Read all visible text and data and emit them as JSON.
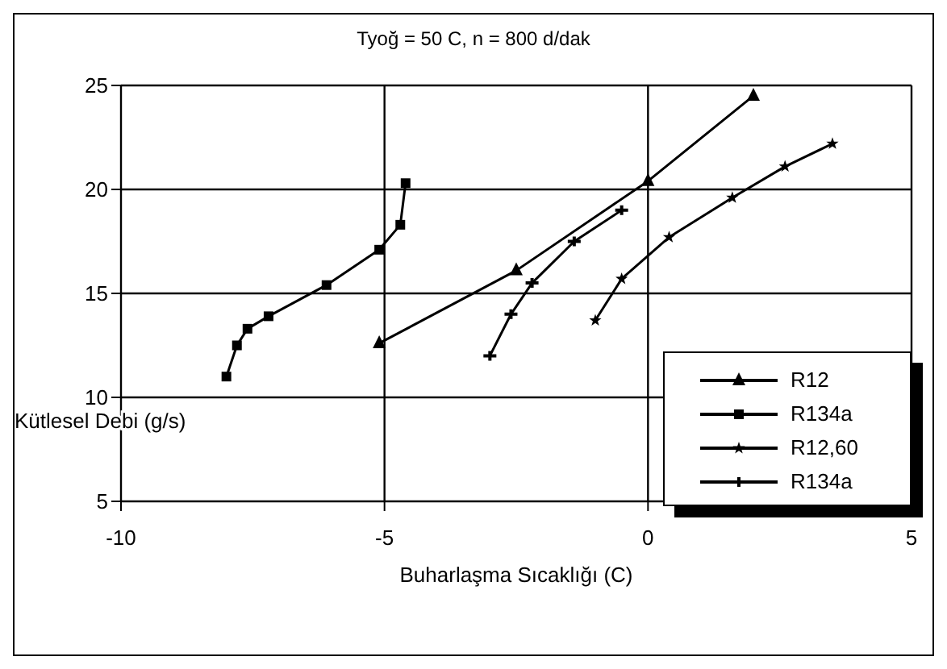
{
  "chart_data": {
    "type": "line",
    "title": "Tyoğ = 50 C, n = 800 d/dak",
    "xlabel": "Buharlaşma Sıcaklığı (C)",
    "ylabel": "Kütlesel Debi (g/s)",
    "xlim": [
      -10,
      5
    ],
    "xticks": [
      -10,
      -5,
      0,
      5
    ],
    "ylim": [
      5,
      25
    ],
    "yticks": [
      5,
      10,
      15,
      20,
      25
    ],
    "grid": true,
    "legend": "bottom right",
    "line_style": "solid",
    "series": [
      {
        "name": "R12",
        "color": "#000000",
        "marker": "triangle",
        "x": [
          -5.1,
          -2.5,
          0,
          2
        ],
        "values": [
          12.6,
          16.1,
          20.4,
          24.5
        ]
      },
      {
        "name": "R134a",
        "color": "#000000",
        "marker": "square",
        "x": [
          -8.0,
          -7.8,
          -7.6,
          -7.2,
          -6.1,
          -5.1,
          -4.7,
          -4.6
        ],
        "values": [
          11.0,
          12.5,
          13.3,
          13.9,
          15.4,
          17.1,
          18.3,
          20.3
        ]
      },
      {
        "name": "R12,60",
        "color": "#000000",
        "marker": "star",
        "x": [
          -1.0,
          -0.5,
          0.4,
          1.6,
          2.6,
          3.5
        ],
        "values": [
          13.7,
          15.7,
          17.7,
          19.6,
          21.1,
          22.2
        ]
      },
      {
        "name": "R134a",
        "color": "#000000",
        "marker": "cross",
        "x": [
          -3.0,
          -2.6,
          -2.2,
          -1.4,
          -0.5
        ],
        "values": [
          12.0,
          14.0,
          15.5,
          17.5,
          19.0
        ]
      }
    ]
  }
}
